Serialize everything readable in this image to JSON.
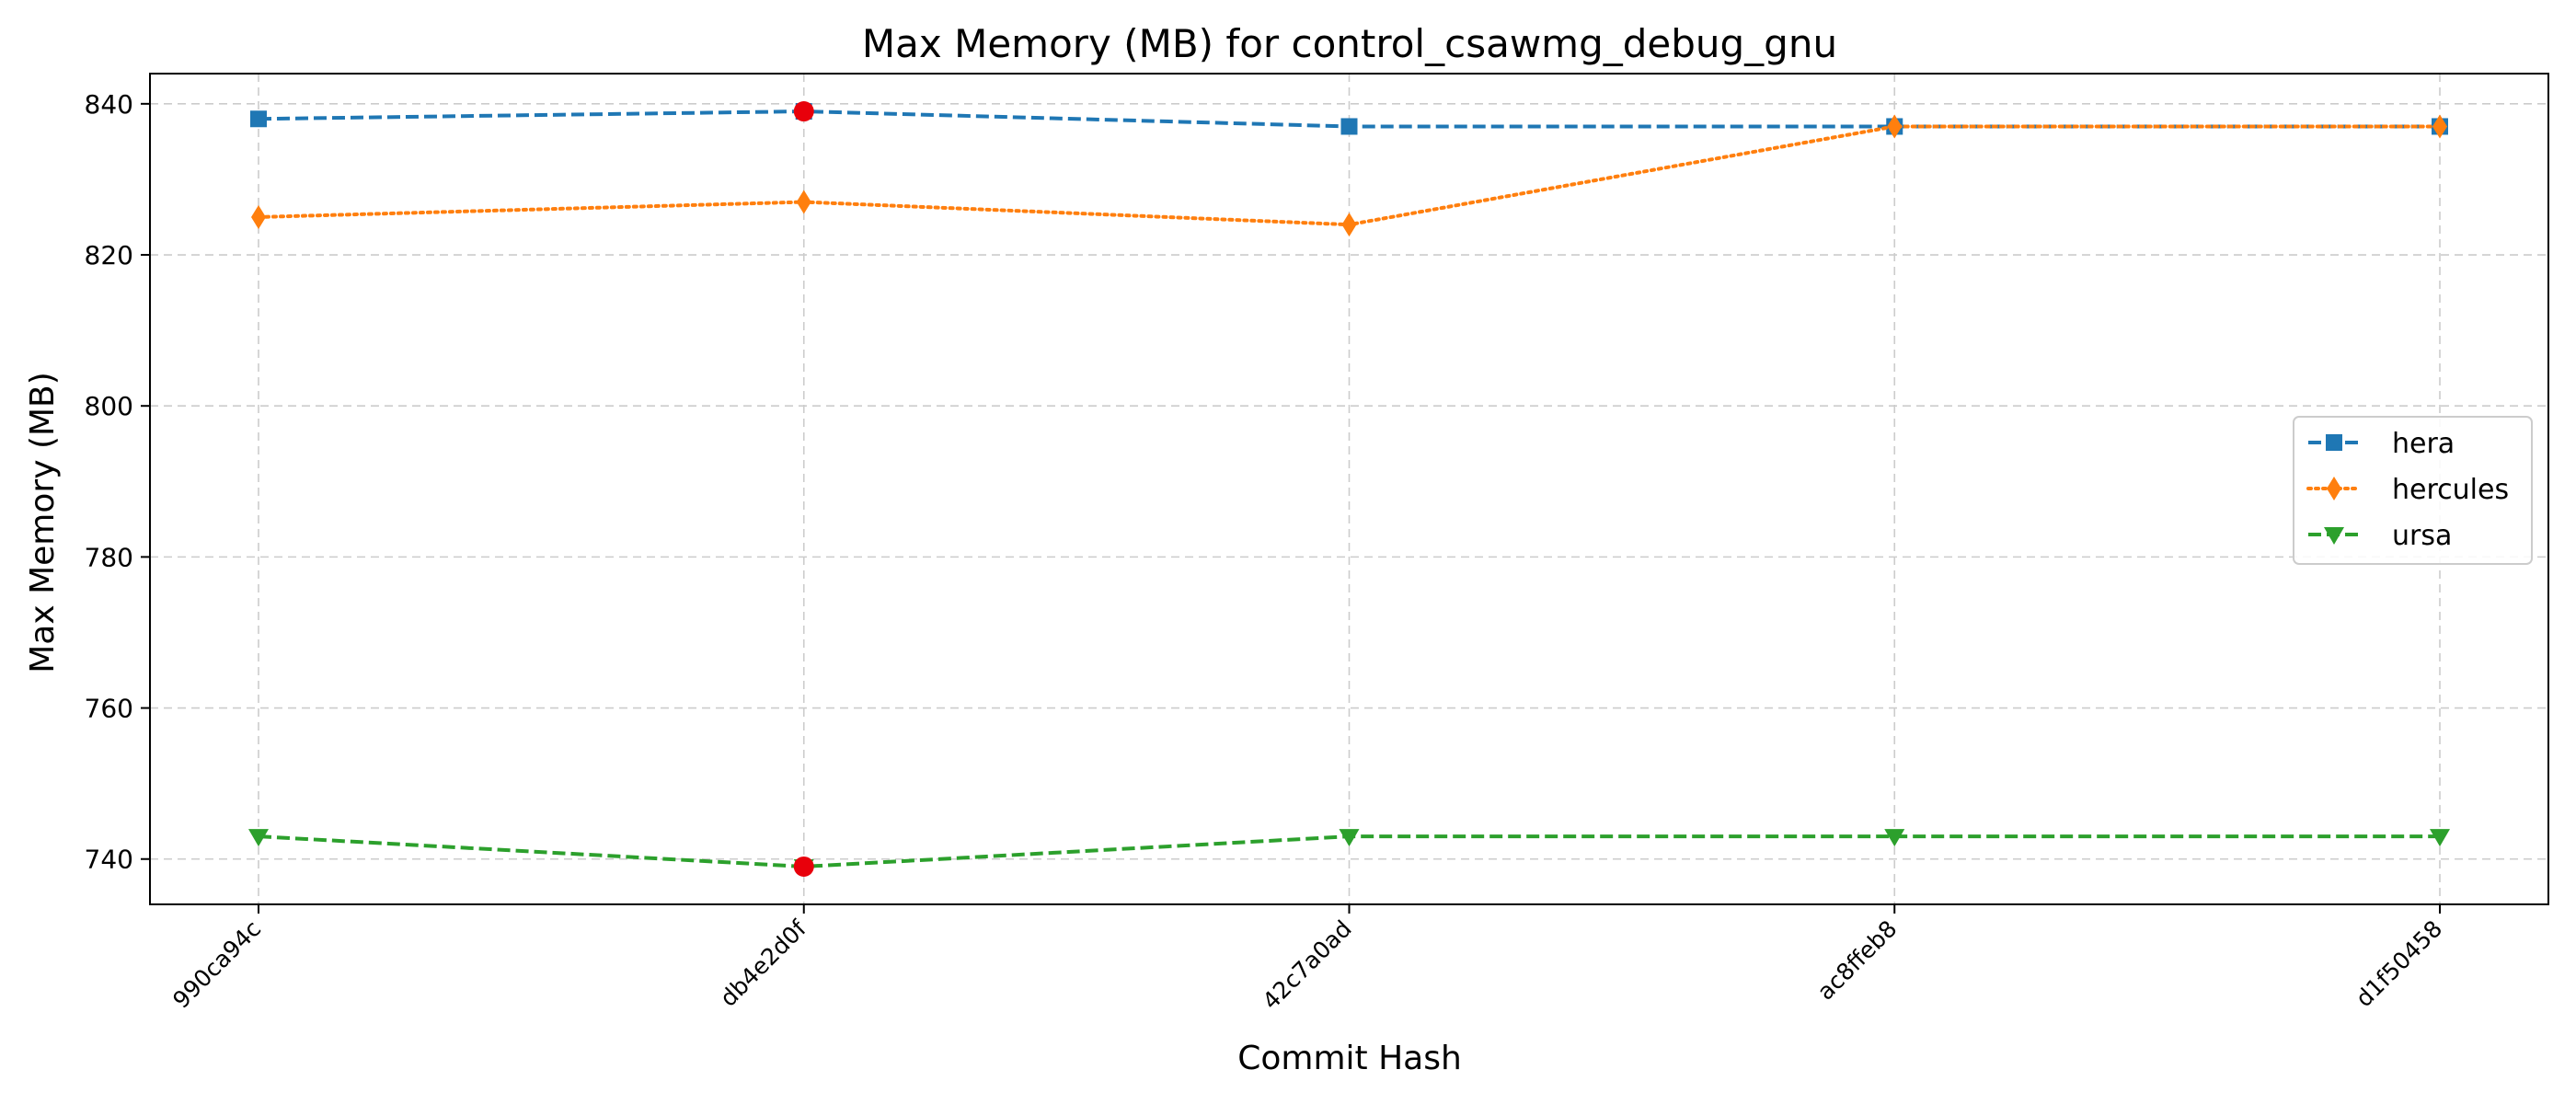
{
  "chart_data": {
    "type": "line",
    "title": "Max Memory (MB) for control_csawmg_debug_gnu",
    "xlabel": "Commit Hash",
    "ylabel": "Max Memory (MB)",
    "categories": [
      "990ca94c",
      "db4e2d0f",
      "42c7a0ad",
      "ac8ffeb8",
      "d1f50458"
    ],
    "ylim": [
      734,
      844
    ],
    "yticks": [
      740,
      760,
      780,
      800,
      820,
      840
    ],
    "grid": true,
    "legend_position": "center-right",
    "series": [
      {
        "name": "hera",
        "values": [
          838,
          839,
          837,
          837,
          837
        ],
        "color": "#1f77b4",
        "line_style": "dashed",
        "marker": "square",
        "highlight_index": 1
      },
      {
        "name": "hercules",
        "values": [
          825,
          827,
          824,
          837,
          837
        ],
        "color": "#ff7f0e",
        "line_style": "dotted",
        "marker": "thin-diamond"
      },
      {
        "name": "ursa",
        "values": [
          743,
          739,
          743,
          743,
          743
        ],
        "color": "#2ca02c",
        "line_style": "dashed",
        "marker": "triangle-down",
        "highlight_index": 1
      }
    ],
    "highlight_color": "#e8000b"
  }
}
